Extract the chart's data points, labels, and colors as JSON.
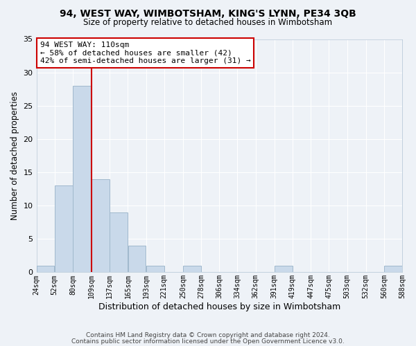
{
  "title": "94, WEST WAY, WIMBOTSHAM, KING'S LYNN, PE34 3QB",
  "subtitle": "Size of property relative to detached houses in Wimbotsham",
  "xlabel": "Distribution of detached houses by size in Wimbotsham",
  "ylabel": "Number of detached properties",
  "bar_color": "#c9d9ea",
  "bar_edge_color": "#a0b8cc",
  "background_color": "#eef2f7",
  "grid_color": "#ffffff",
  "bin_edges": [
    24,
    52,
    80,
    109,
    137,
    165,
    193,
    221,
    250,
    278,
    306,
    334,
    362,
    391,
    419,
    447,
    475,
    503,
    532,
    560,
    588
  ],
  "bin_labels": [
    "24sqm",
    "52sqm",
    "80sqm",
    "109sqm",
    "137sqm",
    "165sqm",
    "193sqm",
    "221sqm",
    "250sqm",
    "278sqm",
    "306sqm",
    "334sqm",
    "362sqm",
    "391sqm",
    "419sqm",
    "447sqm",
    "475sqm",
    "503sqm",
    "532sqm",
    "560sqm",
    "588sqm"
  ],
  "counts": [
    1,
    13,
    28,
    14,
    9,
    4,
    1,
    0,
    1,
    0,
    0,
    0,
    0,
    1,
    0,
    0,
    0,
    0,
    0,
    1
  ],
  "vline_x": 109,
  "annotation_title": "94 WEST WAY: 110sqm",
  "annotation_line1": "← 58% of detached houses are smaller (42)",
  "annotation_line2": "42% of semi-detached houses are larger (31) →",
  "annotation_box_color": "#ffffff",
  "annotation_box_edge": "#cc0000",
  "vline_color": "#cc0000",
  "ylim": [
    0,
    35
  ],
  "yticks": [
    0,
    5,
    10,
    15,
    20,
    25,
    30,
    35
  ],
  "footer1": "Contains HM Land Registry data © Crown copyright and database right 2024.",
  "footer2": "Contains public sector information licensed under the Open Government Licence v3.0."
}
